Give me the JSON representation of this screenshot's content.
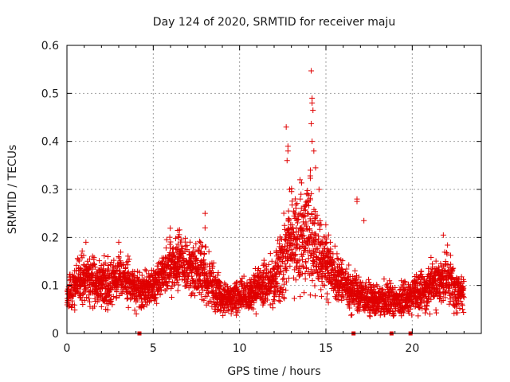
{
  "chart_data": {
    "type": "scatter",
    "title": "Day 124 of 2020, SRMTID for receiver maju",
    "xlabel": "GPS time / hours",
    "ylabel": "SRMTID / TECUs",
    "xlim": [
      0,
      24
    ],
    "ylim": [
      0,
      0.6
    ],
    "xticks": [
      0,
      5,
      10,
      15,
      20
    ],
    "xtick_labels": [
      "0",
      "5",
      "10",
      "15",
      "20"
    ],
    "yticks": [
      0,
      0.1,
      0.2,
      0.3,
      0.4,
      0.5,
      0.6
    ],
    "ytick_labels": [
      "0",
      "0.1",
      "0.2",
      "0.3",
      "0.4",
      "0.5",
      "0.6"
    ],
    "grid": true,
    "marker": "plus",
    "color": "#e00000",
    "envelope": {
      "x": [
        0,
        0.5,
        1,
        1.5,
        2,
        2.5,
        3,
        3.5,
        4,
        4.5,
        5,
        5.5,
        6,
        6.5,
        7,
        7.5,
        8,
        8.5,
        9,
        9.5,
        10,
        10.5,
        11,
        11.5,
        12,
        12.5,
        13,
        13.5,
        14,
        14.5,
        15,
        15.5,
        16,
        16.5,
        17,
        17.5,
        18,
        18.5,
        19,
        19.5,
        20,
        20.5,
        21,
        21.5,
        22,
        22.5,
        23
      ],
      "center": [
        0.08,
        0.1,
        0.12,
        0.11,
        0.1,
        0.1,
        0.12,
        0.11,
        0.09,
        0.09,
        0.1,
        0.12,
        0.14,
        0.15,
        0.14,
        0.13,
        0.12,
        0.09,
        0.07,
        0.07,
        0.08,
        0.08,
        0.09,
        0.1,
        0.12,
        0.15,
        0.2,
        0.19,
        0.21,
        0.18,
        0.15,
        0.12,
        0.1,
        0.09,
        0.08,
        0.07,
        0.07,
        0.07,
        0.07,
        0.07,
        0.08,
        0.09,
        0.1,
        0.1,
        0.12,
        0.09,
        0.08
      ],
      "spread": [
        0.03,
        0.04,
        0.04,
        0.04,
        0.04,
        0.04,
        0.04,
        0.04,
        0.03,
        0.03,
        0.03,
        0.04,
        0.05,
        0.05,
        0.05,
        0.05,
        0.05,
        0.04,
        0.03,
        0.03,
        0.03,
        0.03,
        0.04,
        0.04,
        0.05,
        0.07,
        0.09,
        0.08,
        0.1,
        0.08,
        0.06,
        0.05,
        0.04,
        0.04,
        0.03,
        0.03,
        0.03,
        0.03,
        0.03,
        0.03,
        0.03,
        0.04,
        0.04,
        0.04,
        0.05,
        0.04,
        0.03
      ]
    },
    "sample_interval_hours": 0.02,
    "peaks": [
      {
        "x": 12.7,
        "y": 0.43
      },
      {
        "x": 12.8,
        "y": 0.39
      },
      {
        "x": 12.8,
        "y": 0.38
      },
      {
        "x": 12.75,
        "y": 0.36
      },
      {
        "x": 14.15,
        "y": 0.547
      },
      {
        "x": 14.2,
        "y": 0.49
      },
      {
        "x": 14.2,
        "y": 0.48
      },
      {
        "x": 14.25,
        "y": 0.465
      },
      {
        "x": 14.15,
        "y": 0.437
      },
      {
        "x": 14.2,
        "y": 0.4
      },
      {
        "x": 14.3,
        "y": 0.38
      },
      {
        "x": 14.4,
        "y": 0.345
      },
      {
        "x": 14.1,
        "y": 0.34
      },
      {
        "x": 13.5,
        "y": 0.32
      },
      {
        "x": 12.9,
        "y": 0.3
      },
      {
        "x": 14.6,
        "y": 0.3
      },
      {
        "x": 13.9,
        "y": 0.29
      },
      {
        "x": 16.8,
        "y": 0.28
      },
      {
        "x": 16.8,
        "y": 0.275
      },
      {
        "x": 8.0,
        "y": 0.25
      },
      {
        "x": 8.0,
        "y": 0.22
      },
      {
        "x": 17.2,
        "y": 0.235
      },
      {
        "x": 21.8,
        "y": 0.205
      },
      {
        "x": 3.0,
        "y": 0.19
      },
      {
        "x": 1.1,
        "y": 0.19
      }
    ],
    "gap_markers_x": [
      4.2,
      16.6,
      18.8,
      19.9
    ],
    "gap_marker_y": 0
  }
}
